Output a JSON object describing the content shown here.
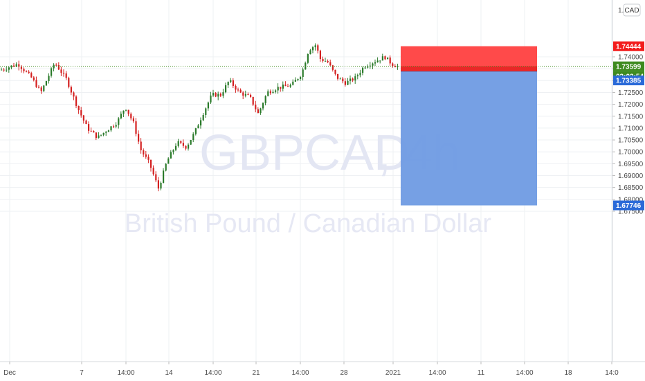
{
  "chart_data": {
    "type": "candlestick",
    "symbol": "GBPCAD",
    "interval": "4h",
    "description": "British Pound / Canadian Dollar",
    "currency": "CAD",
    "y_axis": {
      "ticks": [
        "1.74000",
        "1.73500",
        "1.73000",
        "1.72500",
        "1.72000",
        "1.71500",
        "1.71000",
        "1.70500",
        "1.70000",
        "1.69500",
        "1.69000",
        "1.68500",
        "1.68000",
        "1.67500"
      ],
      "top_partial_label": "1."
    },
    "x_axis": {
      "ticks": [
        "Dec",
        "7",
        "14:00",
        "14",
        "14:00",
        "21",
        "14:00",
        "28",
        "14:00",
        "2021",
        "14:00",
        "11",
        "14:00",
        "18",
        "14:0"
      ]
    },
    "price_labels": {
      "stop_loss": "1.74444",
      "last_price": "1.73599",
      "countdown": "03:02:54",
      "entry": "1.73385",
      "take_profit": "1.67746"
    },
    "position": {
      "side": "short",
      "entry": 1.73385,
      "stop": 1.74444,
      "target": 1.67746
    },
    "candles_summary": {
      "start": "Dec",
      "high": 1.749,
      "low": 1.677,
      "last": 1.73599
    },
    "colors": {
      "up": "#2a7a2a",
      "down": "#d42020",
      "stop_zone": "#ff4040",
      "target_zone": "#6f9be3",
      "last_price_tag": "#3e8a1f",
      "stop_tag": "#f21c1c",
      "entry_tag": "#2a6ad8"
    }
  }
}
